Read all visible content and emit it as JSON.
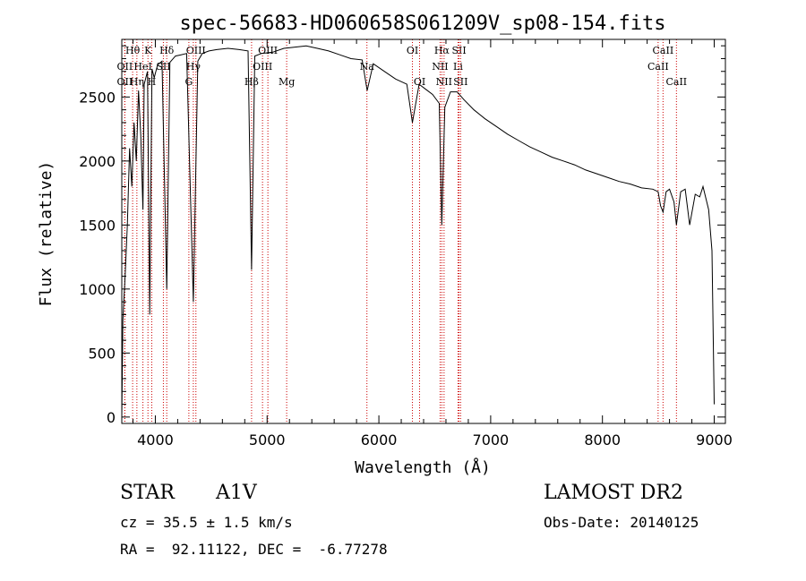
{
  "chart_data": {
    "type": "line",
    "title": "spec-56683-HD060658S061209V_sp08-154.fits",
    "xlabel": "Wavelength (Å)",
    "ylabel": "Flux (relative)",
    "xlim": [
      3700,
      9100
    ],
    "ylim": [
      -50,
      2950
    ],
    "x_ticks": [
      4000,
      5000,
      6000,
      7000,
      8000,
      9000
    ],
    "y_ticks": [
      0,
      500,
      1000,
      1500,
      2000,
      2500
    ],
    "x_tick_labels": [
      "4000",
      "5000",
      "6000",
      "7000",
      "8000",
      "9000"
    ],
    "y_tick_labels": [
      "0",
      "500",
      "1000",
      "1500",
      "2000",
      "2500"
    ],
    "grid": false,
    "series": [
      {
        "x": [
          3700,
          3710,
          3730,
          3750,
          3770,
          3790,
          3810,
          3830,
          3850,
          3870,
          3889,
          3900,
          3930,
          3950,
          3970,
          3990,
          4020,
          4060,
          4102,
          4130,
          4180,
          4230,
          4280,
          4340,
          4380,
          4420,
          4480,
          4550,
          4650,
          4750,
          4830,
          4861,
          4890,
          4950,
          5050,
          5150,
          5250,
          5350,
          5450,
          5550,
          5650,
          5750,
          5850,
          5895,
          5950,
          6050,
          6150,
          6250,
          6300,
          6360,
          6420,
          6480,
          6540,
          6563,
          6590,
          6640,
          6700,
          6760,
          6850,
          6950,
          7050,
          7150,
          7250,
          7350,
          7450,
          7550,
          7650,
          7750,
          7850,
          7950,
          8050,
          8150,
          8250,
          8350,
          8450,
          8498,
          8520,
          8542,
          8570,
          8600,
          8640,
          8662,
          8700,
          8740,
          8780,
          8830,
          8870,
          8900,
          8950,
          8980,
          9000
        ],
        "y": [
          0,
          760,
          1100,
          1500,
          2100,
          1800,
          2300,
          2000,
          2550,
          2200,
          1620,
          2600,
          2700,
          800,
          2720,
          2650,
          2750,
          2780,
          1000,
          2770,
          2820,
          2830,
          2840,
          900,
          2780,
          2840,
          2860,
          2870,
          2880,
          2870,
          2860,
          1150,
          2820,
          2840,
          2850,
          2880,
          2890,
          2900,
          2880,
          2860,
          2830,
          2800,
          2790,
          2550,
          2760,
          2700,
          2640,
          2600,
          2300,
          2600,
          2560,
          2520,
          2450,
          1500,
          2420,
          2540,
          2540,
          2480,
          2400,
          2330,
          2270,
          2210,
          2160,
          2110,
          2070,
          2030,
          2000,
          1970,
          1930,
          1900,
          1870,
          1840,
          1820,
          1790,
          1780,
          1760,
          1650,
          1600,
          1760,
          1780,
          1680,
          1500,
          1760,
          1780,
          1500,
          1740,
          1720,
          1800,
          1620,
          1300,
          100
        ]
      }
    ],
    "lines": [
      {
        "label": "Hθ",
        "x": 3797,
        "row": 0
      },
      {
        "label": "K",
        "x": 3934,
        "row": 0
      },
      {
        "label": "Hδ",
        "x": 4102,
        "row": 0
      },
      {
        "label": "OIII",
        "x": 4363,
        "row": 0
      },
      {
        "label": "OIII",
        "x": 5007,
        "row": 0
      },
      {
        "label": "OI",
        "x": 6300,
        "row": 0
      },
      {
        "label": "Hα",
        "x": 6563,
        "row": 0
      },
      {
        "label": "SII",
        "x": 6717,
        "row": 0
      },
      {
        "label": "CaII",
        "x": 8542,
        "row": 0
      },
      {
        "label": "OII",
        "x": 3727,
        "row": 1
      },
      {
        "label": "HeI",
        "x": 3889,
        "row": 1
      },
      {
        "label": "SII",
        "x": 4072,
        "row": 1
      },
      {
        "label": "Hγ",
        "x": 4340,
        "row": 1
      },
      {
        "label": "OIII",
        "x": 4959,
        "row": 1
      },
      {
        "label": "Na",
        "x": 5893,
        "row": 1
      },
      {
        "label": "NII",
        "x": 6548,
        "row": 1
      },
      {
        "label": "Li",
        "x": 6708,
        "row": 1
      },
      {
        "label": "CaII",
        "x": 8498,
        "row": 1
      },
      {
        "label": "OII",
        "x": 3727,
        "row": 2
      },
      {
        "label": "Hη",
        "x": 3835,
        "row": 2
      },
      {
        "label": "H",
        "x": 3968,
        "row": 2
      },
      {
        "label": "G",
        "x": 4300,
        "row": 2
      },
      {
        "label": "Hβ",
        "x": 4861,
        "row": 2
      },
      {
        "label": "Mg",
        "x": 5175,
        "row": 2
      },
      {
        "label": "OI",
        "x": 6364,
        "row": 2
      },
      {
        "label": "NII",
        "x": 6583,
        "row": 2
      },
      {
        "label": "SII",
        "x": 6731,
        "row": 2
      },
      {
        "label": "CaII",
        "x": 8662,
        "row": 2
      }
    ],
    "line_color": "#cc0000"
  },
  "info": {
    "object_type": "STAR",
    "subclass": "A1V",
    "survey": "LAMOST DR2",
    "cz": "cz = 35.5 ± 1.5 km/s",
    "obs_date": "Obs-Date: 20140125",
    "coords": "RA =  92.11122, DEC =  -6.77278"
  }
}
